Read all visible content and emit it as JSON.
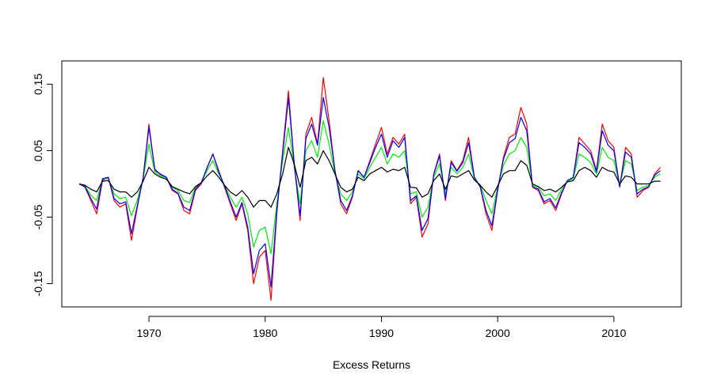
{
  "chart_data": {
    "type": "line",
    "title": "",
    "xlabel": "Excess Returns",
    "ylabel": "",
    "xlim": [
      1962.5,
      2015.8
    ],
    "ylim": [
      -0.185,
      0.185
    ],
    "x_ticks": [
      1970,
      1980,
      1990,
      2000,
      2010
    ],
    "x_tick_labels": [
      "1970",
      "1980",
      "1990",
      "2000",
      "2010"
    ],
    "y_ticks": [
      -0.15,
      -0.05,
      0.05,
      0.15
    ],
    "y_tick_labels": [
      "-0.15",
      "-0.05",
      "0.05",
      "0.15"
    ],
    "grid": false,
    "legend": "none",
    "x": [
      1964.0,
      1964.5,
      1965.0,
      1965.5,
      1966.0,
      1966.5,
      1967.0,
      1967.5,
      1968.0,
      1968.5,
      1969.0,
      1969.5,
      1970.0,
      1970.5,
      1971.0,
      1971.5,
      1972.0,
      1972.5,
      1973.0,
      1973.5,
      1974.0,
      1974.5,
      1975.0,
      1975.5,
      1976.0,
      1976.5,
      1977.0,
      1977.5,
      1978.0,
      1978.5,
      1979.0,
      1979.5,
      1980.0,
      1980.5,
      1981.0,
      1981.5,
      1982.0,
      1982.5,
      1983.0,
      1983.5,
      1984.0,
      1984.5,
      1985.0,
      1985.5,
      1986.0,
      1986.5,
      1987.0,
      1987.5,
      1988.0,
      1988.5,
      1989.0,
      1989.5,
      1990.0,
      1990.5,
      1991.0,
      1991.5,
      1992.0,
      1992.5,
      1993.0,
      1993.5,
      1994.0,
      1994.5,
      1995.0,
      1995.5,
      1996.0,
      1996.5,
      1997.0,
      1997.5,
      1998.0,
      1998.5,
      1999.0,
      1999.5,
      2000.0,
      2000.5,
      2001.0,
      2001.5,
      2002.0,
      2002.5,
      2003.0,
      2003.5,
      2004.0,
      2004.5,
      2005.0,
      2005.5,
      2006.0,
      2006.5,
      2007.0,
      2007.5,
      2008.0,
      2008.5,
      2009.0,
      2009.5,
      2010.0,
      2010.5,
      2011.0,
      2011.5,
      2012.0,
      2012.5,
      2013.0,
      2013.5,
      2014.0
    ],
    "series": [
      {
        "color": "#ff0000",
        "values": [
          0.0,
          -0.005,
          -0.025,
          -0.045,
          0.005,
          0.01,
          -0.025,
          -0.035,
          -0.03,
          -0.085,
          -0.035,
          0.01,
          0.09,
          0.02,
          0.015,
          0.01,
          -0.01,
          -0.015,
          -0.04,
          -0.045,
          -0.01,
          0.0,
          0.025,
          0.045,
          0.02,
          -0.005,
          -0.03,
          -0.055,
          -0.03,
          -0.07,
          -0.15,
          -0.11,
          -0.1,
          -0.175,
          -0.045,
          0.05,
          0.14,
          0.03,
          -0.055,
          0.075,
          0.1,
          0.06,
          0.16,
          0.095,
          0.02,
          -0.03,
          -0.045,
          -0.02,
          0.02,
          0.01,
          0.035,
          0.06,
          0.085,
          0.045,
          0.07,
          0.06,
          0.075,
          -0.03,
          -0.02,
          -0.08,
          -0.06,
          0.015,
          0.045,
          -0.025,
          0.035,
          0.02,
          0.035,
          0.07,
          0.01,
          -0.005,
          -0.045,
          -0.07,
          -0.01,
          0.04,
          0.07,
          0.075,
          0.115,
          0.09,
          -0.005,
          -0.01,
          -0.03,
          -0.025,
          -0.04,
          -0.015,
          0.005,
          0.01,
          0.07,
          0.06,
          0.05,
          0.02,
          0.09,
          0.065,
          0.055,
          -0.005,
          0.055,
          0.045,
          -0.02,
          -0.01,
          -0.005,
          0.015,
          0.025
        ]
      },
      {
        "color": "#00ee00",
        "values": [
          0.0,
          -0.003,
          -0.017,
          -0.025,
          0.007,
          0.008,
          -0.015,
          -0.022,
          -0.02,
          -0.048,
          -0.024,
          0.008,
          0.06,
          0.018,
          0.012,
          0.009,
          -0.005,
          -0.01,
          -0.025,
          -0.028,
          -0.005,
          0.002,
          0.02,
          0.035,
          0.015,
          -0.002,
          -0.02,
          -0.035,
          -0.02,
          -0.045,
          -0.095,
          -0.07,
          -0.065,
          -0.105,
          -0.03,
          0.035,
          0.085,
          0.025,
          -0.03,
          0.05,
          0.065,
          0.04,
          0.095,
          0.06,
          0.015,
          -0.015,
          -0.025,
          -0.012,
          0.015,
          0.008,
          0.025,
          0.04,
          0.055,
          0.03,
          0.045,
          0.04,
          0.05,
          -0.015,
          -0.012,
          -0.05,
          -0.035,
          0.01,
          0.03,
          -0.015,
          0.025,
          0.015,
          0.025,
          0.045,
          0.008,
          -0.002,
          -0.025,
          -0.045,
          -0.005,
          0.028,
          0.045,
          0.05,
          0.07,
          0.055,
          -0.002,
          -0.005,
          -0.018,
          -0.015,
          -0.025,
          -0.008,
          0.004,
          0.008,
          0.045,
          0.04,
          0.032,
          0.015,
          0.055,
          0.04,
          0.035,
          -0.002,
          0.035,
          0.03,
          -0.01,
          -0.005,
          -0.002,
          0.01,
          0.015
        ]
      },
      {
        "color": "#0000ff",
        "values": [
          0.0,
          -0.004,
          -0.022,
          -0.038,
          0.008,
          0.01,
          -0.022,
          -0.03,
          -0.027,
          -0.075,
          -0.032,
          0.009,
          0.085,
          0.022,
          0.014,
          0.01,
          -0.008,
          -0.014,
          -0.035,
          -0.04,
          -0.008,
          0.002,
          0.024,
          0.045,
          0.018,
          -0.003,
          -0.027,
          -0.05,
          -0.028,
          -0.065,
          -0.135,
          -0.1,
          -0.09,
          -0.155,
          -0.04,
          0.045,
          0.13,
          0.03,
          -0.048,
          0.068,
          0.09,
          0.058,
          0.13,
          0.085,
          0.02,
          -0.025,
          -0.04,
          -0.018,
          0.02,
          0.01,
          0.032,
          0.055,
          0.075,
          0.04,
          0.065,
          0.055,
          0.07,
          -0.025,
          -0.018,
          -0.07,
          -0.052,
          0.014,
          0.042,
          -0.022,
          0.032,
          0.019,
          0.032,
          0.062,
          0.01,
          -0.004,
          -0.04,
          -0.063,
          -0.008,
          0.037,
          0.062,
          0.068,
          0.1,
          0.08,
          -0.004,
          -0.008,
          -0.027,
          -0.022,
          -0.036,
          -0.013,
          0.005,
          0.01,
          0.062,
          0.055,
          0.045,
          0.018,
          0.08,
          0.058,
          0.05,
          -0.004,
          0.048,
          0.04,
          -0.015,
          -0.008,
          -0.004,
          0.013,
          0.02
        ]
      },
      {
        "color": "#000000",
        "values": [
          0.0,
          -0.002,
          -0.008,
          -0.012,
          0.004,
          0.005,
          -0.008,
          -0.012,
          -0.012,
          -0.02,
          -0.012,
          0.004,
          0.025,
          0.015,
          0.01,
          0.007,
          -0.004,
          -0.008,
          -0.012,
          -0.015,
          -0.004,
          0.002,
          0.012,
          0.02,
          0.01,
          -0.002,
          -0.012,
          -0.018,
          -0.01,
          -0.02,
          -0.035,
          -0.025,
          -0.025,
          -0.035,
          -0.015,
          0.015,
          0.055,
          0.03,
          -0.005,
          0.035,
          0.04,
          0.03,
          0.05,
          0.035,
          0.015,
          -0.005,
          -0.012,
          -0.008,
          0.01,
          0.005,
          0.015,
          0.02,
          0.025,
          0.018,
          0.022,
          0.02,
          0.025,
          -0.005,
          -0.006,
          -0.02,
          -0.015,
          0.005,
          0.015,
          -0.008,
          0.012,
          0.01,
          0.015,
          0.02,
          0.006,
          -0.002,
          -0.012,
          -0.02,
          -0.003,
          0.015,
          0.02,
          0.02,
          0.035,
          0.028,
          0.0,
          -0.004,
          -0.01,
          -0.008,
          -0.012,
          -0.005,
          0.003,
          0.005,
          0.02,
          0.025,
          0.02,
          0.01,
          0.025,
          0.02,
          0.018,
          0.0,
          0.012,
          0.01,
          0.0,
          0.0,
          0.0,
          0.004,
          0.004
        ]
      }
    ]
  }
}
